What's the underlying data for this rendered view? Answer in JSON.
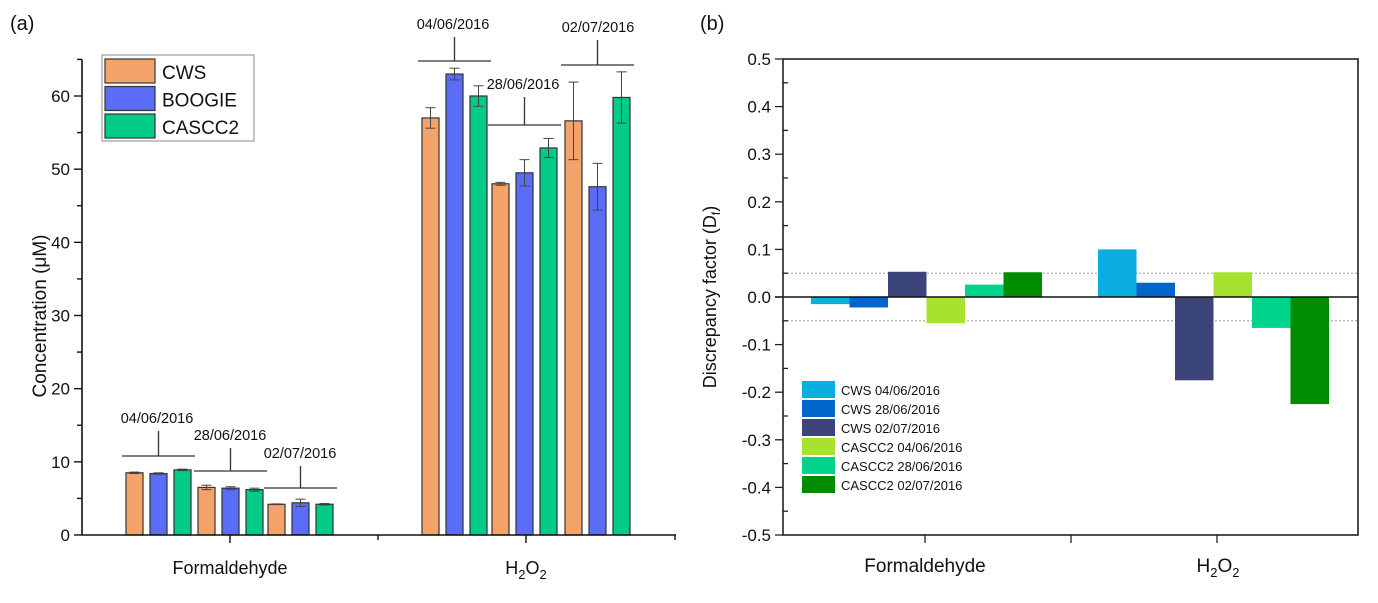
{
  "chart_data": [
    {
      "panel_label": "(a)",
      "type": "bar",
      "title": "",
      "xlabel": "",
      "ylabel": "Concentration (μM)",
      "ylim": [
        0,
        65
      ],
      "yticks": [
        0,
        10,
        20,
        30,
        40,
        50,
        60
      ],
      "categories": [
        "Formaldehyde",
        "H2O2"
      ],
      "category_labels": [
        {
          "text": "Formaldehyde"
        },
        {
          "text": "H",
          "sub1": "2",
          "mid": "O",
          "sub2": "2"
        }
      ],
      "legend": {
        "position": "top-left",
        "entries": [
          "CWS",
          "BOOGIE",
          "CASCC2"
        ]
      },
      "colors": {
        "CWS": "#F4A46A",
        "BOOGIE": "#5B6CF8",
        "CASCC2": "#00CC88"
      },
      "groups": [
        {
          "category": "Formaldehyde",
          "date": "04/06/2016",
          "values": {
            "CWS": 8.5,
            "BOOGIE": 8.4,
            "CASCC2": 8.9
          },
          "errors": {
            "CWS": 0.1,
            "BOOGIE": 0.1,
            "CASCC2": 0.1
          }
        },
        {
          "category": "Formaldehyde",
          "date": "28/06/2016",
          "values": {
            "CWS": 6.5,
            "BOOGIE": 6.4,
            "CASCC2": 6.2
          },
          "errors": {
            "CWS": 0.3,
            "BOOGIE": 0.2,
            "CASCC2": 0.2
          }
        },
        {
          "category": "Formaldehyde",
          "date": "02/07/2016",
          "values": {
            "CWS": 4.2,
            "BOOGIE": 4.4,
            "CASCC2": 4.2
          },
          "errors": {
            "CWS": 0.05,
            "BOOGIE": 0.5,
            "CASCC2": 0.1
          }
        },
        {
          "category": "H2O2",
          "date": "04/06/2016",
          "values": {
            "CWS": 57.0,
            "BOOGIE": 63.0,
            "CASCC2": 60.0
          },
          "errors": {
            "CWS": 1.4,
            "BOOGIE": 0.8,
            "CASCC2": 1.4
          }
        },
        {
          "category": "H2O2",
          "date": "28/06/2016",
          "values": {
            "CWS": 48.0,
            "BOOGIE": 49.5,
            "CASCC2": 52.9
          },
          "errors": {
            "CWS": 0.2,
            "BOOGIE": 1.8,
            "CASCC2": 1.3
          }
        },
        {
          "category": "H2O2",
          "date": "02/07/2016",
          "values": {
            "CWS": 56.6,
            "BOOGIE": 47.6,
            "CASCC2": 59.8
          },
          "errors": {
            "CWS": 5.3,
            "BOOGIE": 3.2,
            "CASCC2": 3.5
          }
        }
      ]
    },
    {
      "panel_label": "(b)",
      "type": "bar",
      "title": "",
      "xlabel": "",
      "ylabel": "Discrepancy factor (D",
      "ylabel_sub": "f",
      "ylabel_end": ")",
      "ylim": [
        -0.5,
        0.5
      ],
      "yticks": [
        "-0.5",
        "-0.4",
        "-0.3",
        "-0.2",
        "-0.1",
        "0.0",
        "0.1",
        "0.2",
        "0.3",
        "0.4",
        "0.5"
      ],
      "reference_lines": [
        0.05,
        -0.05
      ],
      "categories": [
        "Formaldehyde",
        "H2O2"
      ],
      "legend": {
        "position": "bottom-left"
      },
      "series": [
        {
          "name": "CWS 04/06/2016",
          "color": "#0AAEE0",
          "values": [
            -0.015,
            0.1
          ]
        },
        {
          "name": "CWS 28/06/2016",
          "color": "#0066CC",
          "values": [
            -0.022,
            0.03
          ]
        },
        {
          "name": "CWS 02/07/2016",
          "color": "#3B4579",
          "values": [
            0.053,
            -0.175
          ]
        },
        {
          "name": "CASCC2 04/06/2016",
          "color": "#A6E22E",
          "values": [
            -0.055,
            0.052
          ]
        },
        {
          "name": "CASCC2 28/06/2016",
          "color": "#00D38B",
          "values": [
            0.026,
            -0.065
          ]
        },
        {
          "name": "CASCC2 02/07/2016",
          "color": "#008C00",
          "values": [
            0.052,
            -0.225
          ]
        }
      ]
    }
  ]
}
